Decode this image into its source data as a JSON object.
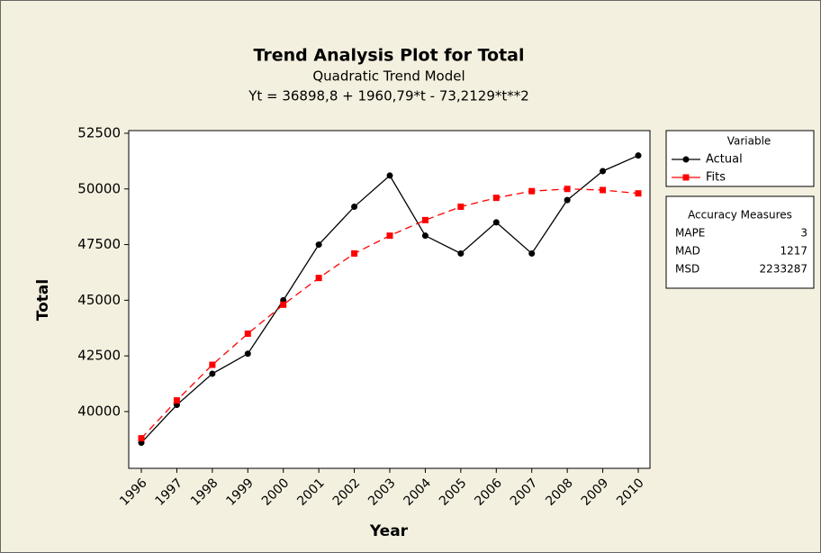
{
  "chart_data": {
    "type": "line",
    "title": "Trend Analysis Plot for Total",
    "subtitle": "Quadratic Trend Model",
    "equation": "Yt = 36898,8 + 1960,79*t - 73,2129*t**2",
    "x_label": "Year",
    "y_label": "Total",
    "categories": [
      "1996",
      "1997",
      "1998",
      "1999",
      "2000",
      "2001",
      "2002",
      "2003",
      "2004",
      "2005",
      "2006",
      "2007",
      "2008",
      "2009",
      "2010"
    ],
    "series": [
      {
        "name": "Actual",
        "color": "#000000",
        "marker": "circle",
        "dash": false,
        "values": [
          38600,
          40300,
          41700,
          42600,
          45000,
          47500,
          49200,
          50600,
          47900,
          47100,
          48500,
          47100,
          49500,
          50800,
          51500
        ]
      },
      {
        "name": "Fits",
        "color": "#ff0000",
        "marker": "square",
        "dash": true,
        "values": [
          38800,
          40500,
          42100,
          43500,
          44800,
          46000,
          47100,
          47900,
          48600,
          49200,
          49600,
          49900,
          50000,
          49950,
          49800
        ]
      }
    ],
    "ylim": [
      37450,
      52620
    ],
    "yticks": [
      40000,
      42500,
      45000,
      47500,
      50000,
      52500
    ],
    "legend_title": "Variable",
    "accuracy": {
      "title": "Accuracy Measures",
      "rows": [
        [
          "MAPE",
          3
        ],
        [
          "MAD",
          1217
        ],
        [
          "MSD",
          2233287
        ]
      ]
    }
  }
}
